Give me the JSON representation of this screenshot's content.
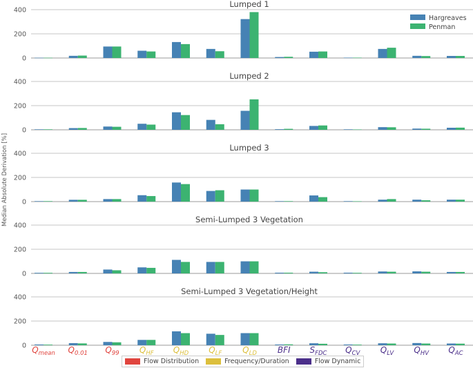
{
  "y_axis_label": "Median Absolute Derivation [%]",
  "colors": {
    "hargreaves": "#4682b4",
    "penman": "#3cb371",
    "flow_distribution": "#e0443e",
    "frequency_duration": "#dcbf3c",
    "flow_dynamic": "#4b2f8a"
  },
  "legend": {
    "hargreaves": "Hargreaves",
    "penman": "Penman"
  },
  "category_groups": [
    {
      "label": "Flow Distribution",
      "color": "#e0443e"
    },
    {
      "label": "Frequency/Duration",
      "color": "#dcbf3c"
    },
    {
      "label": "Flow Dynamic",
      "color": "#4b2f8a"
    }
  ],
  "categories": [
    {
      "main": "Q",
      "sub": "mean",
      "group": 0
    },
    {
      "main": "Q",
      "sub": "0.01",
      "group": 0
    },
    {
      "main": "Q",
      "sub": "99",
      "group": 0
    },
    {
      "main": "Q",
      "sub": "HF",
      "group": 1
    },
    {
      "main": "Q",
      "sub": "HD",
      "group": 1
    },
    {
      "main": "Q",
      "sub": "LF",
      "group": 1
    },
    {
      "main": "Q",
      "sub": "LD",
      "group": 1
    },
    {
      "main": "BFI",
      "sub": "",
      "group": 2
    },
    {
      "main": "S",
      "sub": "FDC",
      "group": 2
    },
    {
      "main": "Q",
      "sub": "CV",
      "group": 2
    },
    {
      "main": "Q",
      "sub": "LV",
      "group": 2
    },
    {
      "main": "Q",
      "sub": "HV",
      "group": 2
    },
    {
      "main": "Q",
      "sub": "AC",
      "group": 2
    }
  ],
  "chart_data": [
    {
      "type": "bar",
      "title": "Lumped 1",
      "ylim": [
        0,
        400
      ],
      "yticks": [
        0,
        200,
        400
      ],
      "legend": "top-right",
      "series": [
        {
          "name": "Hargreaves",
          "values": [
            2,
            18,
            95,
            60,
            132,
            75,
            322,
            8,
            52,
            3,
            75,
            18,
            17
          ]
        },
        {
          "name": "Penman",
          "values": [
            2,
            20,
            95,
            54,
            115,
            56,
            380,
            10,
            54,
            3,
            85,
            16,
            17
          ]
        }
      ]
    },
    {
      "type": "bar",
      "title": "Lumped 2",
      "ylim": [
        0,
        400
      ],
      "yticks": [
        0,
        200,
        400
      ],
      "series": [
        {
          "name": "Hargreaves",
          "values": [
            4,
            14,
            27,
            50,
            145,
            82,
            157,
            5,
            32,
            4,
            22,
            10,
            17
          ]
        },
        {
          "name": "Penman",
          "values": [
            4,
            15,
            25,
            43,
            122,
            46,
            252,
            8,
            36,
            3,
            21,
            9,
            18
          ]
        }
      ]
    },
    {
      "type": "bar",
      "title": "Lumped 3",
      "ylim": [
        0,
        400
      ],
      "yticks": [
        0,
        200,
        400
      ],
      "series": [
        {
          "name": "Hargreaves",
          "values": [
            4,
            15,
            21,
            53,
            158,
            88,
            100,
            4,
            51,
            4,
            16,
            16,
            16
          ]
        },
        {
          "name": "Penman",
          "values": [
            4,
            15,
            21,
            46,
            145,
            94,
            100,
            4,
            37,
            3,
            21,
            11,
            16
          ]
        }
      ]
    },
    {
      "type": "bar",
      "title": "Semi-Lumped 3 Vegetation",
      "ylim": [
        0,
        400
      ],
      "yticks": [
        0,
        200,
        400
      ],
      "series": [
        {
          "name": "Hargreaves",
          "values": [
            5,
            12,
            32,
            50,
            112,
            95,
            100,
            6,
            14,
            6,
            16,
            17,
            12
          ]
        },
        {
          "name": "Penman",
          "values": [
            5,
            12,
            26,
            46,
            95,
            95,
            100,
            6,
            10,
            5,
            14,
            14,
            12
          ]
        }
      ]
    },
    {
      "type": "bar",
      "title": "Semi-Lumped 3 Vegetation/Height",
      "ylim": [
        0,
        400
      ],
      "yticks": [
        0,
        200,
        400
      ],
      "series": [
        {
          "name": "Hargreaves",
          "values": [
            6,
            17,
            27,
            44,
            115,
            95,
            100,
            6,
            16,
            6,
            16,
            18,
            14
          ]
        },
        {
          "name": "Penman",
          "values": [
            5,
            15,
            24,
            44,
            100,
            85,
            100,
            7,
            12,
            5,
            14,
            14,
            13
          ]
        }
      ]
    }
  ]
}
